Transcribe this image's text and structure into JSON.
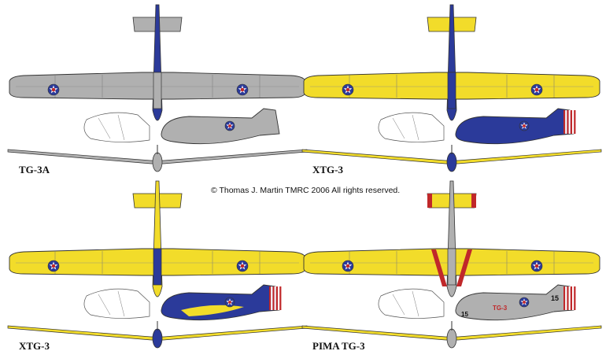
{
  "copyright": "© Thomas J. Martin TMRC 2006 All rights reserved.",
  "colors": {
    "gray": "#b0b0b0",
    "yellow": "#f2dc2a",
    "blue": "#2b3a9a",
    "red": "#c0282a",
    "outline": "#333333"
  },
  "variants": [
    {
      "label": "TG-3A",
      "scheme": "gray",
      "fuselage": "gray",
      "spine": "blue",
      "stripes": false,
      "rudder": "gray",
      "insignia": true,
      "numbers": null
    },
    {
      "label": "XTG-3",
      "scheme": "yellow",
      "fuselage": "blue",
      "spine": "blue",
      "stripes": false,
      "rudder": "flag",
      "insignia": true,
      "numbers": null
    },
    {
      "label": "XTG-3",
      "scheme": "yellow",
      "fuselage": "blue",
      "spine": "yellow",
      "stripes": false,
      "rudder": "flag",
      "insignia": true,
      "numbers": null
    },
    {
      "label": "PIMA TG-3",
      "scheme": "yellow",
      "fuselage": "gray",
      "spine": "gray",
      "stripes": true,
      "rudder": "flag",
      "insignia": true,
      "numbers": {
        "tail": "15",
        "fin": "TG-3",
        "nose": "15"
      }
    }
  ]
}
